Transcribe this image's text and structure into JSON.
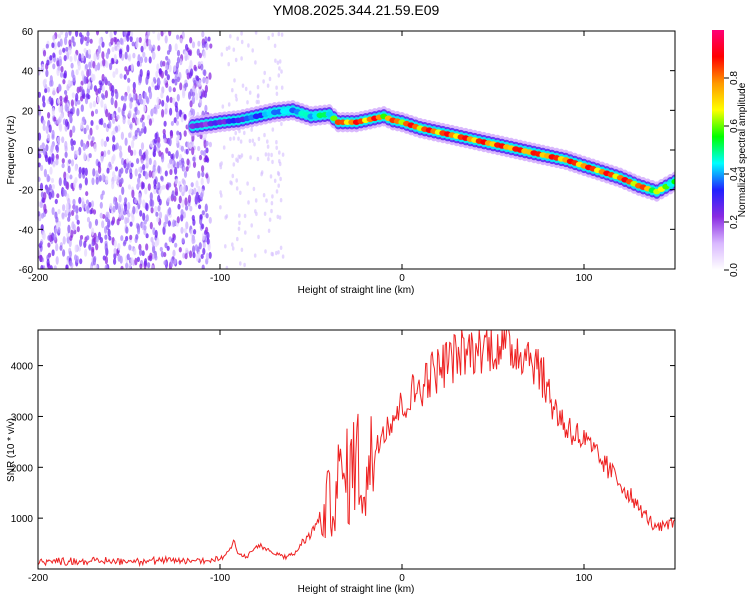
{
  "title": "YM08.2025.344.21.59.E09",
  "colors": {
    "snr_line": "#ee2222",
    "ridge_core": "#e32727",
    "noise": "#6a1ff2"
  },
  "chart_data": [
    {
      "type": "heatmap",
      "title": "YM08.2025.344.21.59.E09",
      "xlabel": "Height of straight line (km)",
      "ylabel": "Frequency (Hz)",
      "xlim": [
        -200,
        150
      ],
      "ylim": [
        -60,
        60
      ],
      "xticks": [
        -200,
        -100,
        0,
        100
      ],
      "yticks": [
        60,
        40,
        20,
        0,
        -20,
        -40,
        -60
      ],
      "colorbar": {
        "label": "Normalized spectral amplitude",
        "range": [
          0,
          1
        ],
        "ticks": [
          "0.0",
          "0.2",
          "0.4",
          "0.6",
          "0.8"
        ],
        "colormap": [
          "#ffffff",
          "#d9b8ff",
          "#8a2be2",
          "#2020ff",
          "#00ffff",
          "#00ff00",
          "#ffff00",
          "#ff9900",
          "#ff0000",
          "#ff0077"
        ]
      },
      "noise_region": {
        "x_range": [
          -200,
          -105
        ],
        "y_range": [
          -60,
          60
        ],
        "amplitude": 0.15
      },
      "ridge": {
        "x": [
          -115,
          -100,
          -90,
          -80,
          -70,
          -60,
          -50,
          -40,
          -35,
          -30,
          -25,
          -20,
          -15,
          -10,
          -5,
          0,
          10,
          20,
          30,
          40,
          50,
          60,
          70,
          80,
          90,
          100,
          110,
          120,
          130,
          140,
          150
        ],
        "y": [
          12,
          14,
          15,
          17,
          19,
          20,
          17,
          18,
          14,
          14,
          14,
          15,
          16,
          17,
          15,
          14,
          11,
          9,
          7,
          5,
          3,
          1,
          -1,
          -3,
          -5,
          -8,
          -11,
          -14,
          -18,
          -21,
          -16
        ],
        "amplitude": [
          0.25,
          0.3,
          0.35,
          0.4,
          0.45,
          0.45,
          0.5,
          0.55,
          0.85,
          0.9,
          0.9,
          0.9,
          0.9,
          0.8,
          0.85,
          0.9,
          0.9,
          0.9,
          0.9,
          0.9,
          0.9,
          0.9,
          0.9,
          0.9,
          0.9,
          0.9,
          0.9,
          0.9,
          0.9,
          0.7,
          0.6
        ]
      }
    },
    {
      "type": "line",
      "xlabel": "Height of straight line (km)",
      "ylabel": "SNR (10 * v/v)",
      "xlim": [
        -200,
        150
      ],
      "ylim": [
        0,
        4700
      ],
      "xticks": [
        -200,
        -100,
        0,
        100
      ],
      "yticks": [
        1000,
        2000,
        3000,
        4000
      ],
      "series": [
        {
          "name": "SNR",
          "x": [
            -200,
            -150,
            -110,
            -100,
            -95,
            -92,
            -90,
            -85,
            -80,
            -75,
            -70,
            -65,
            -60,
            -55,
            -50,
            -45,
            -40,
            -35,
            -30,
            -25,
            -20,
            -15,
            -10,
            -5,
            0,
            5,
            10,
            15,
            20,
            25,
            30,
            35,
            40,
            45,
            50,
            55,
            60,
            65,
            70,
            75,
            80,
            85,
            90,
            95,
            100,
            110,
            120,
            130,
            140,
            150
          ],
          "y": [
            150,
            160,
            160,
            200,
            350,
            600,
            300,
            250,
            450,
            400,
            300,
            250,
            250,
            500,
            700,
            1000,
            1300,
            1700,
            1800,
            2200,
            1600,
            2400,
            2800,
            3000,
            3200,
            3400,
            3600,
            3800,
            3950,
            4100,
            4200,
            4250,
            4300,
            4350,
            4400,
            4400,
            4350,
            4300,
            4250,
            4000,
            3500,
            3100,
            2800,
            2700,
            2500,
            2100,
            1700,
            1200,
            800,
            900
          ]
        }
      ]
    }
  ]
}
